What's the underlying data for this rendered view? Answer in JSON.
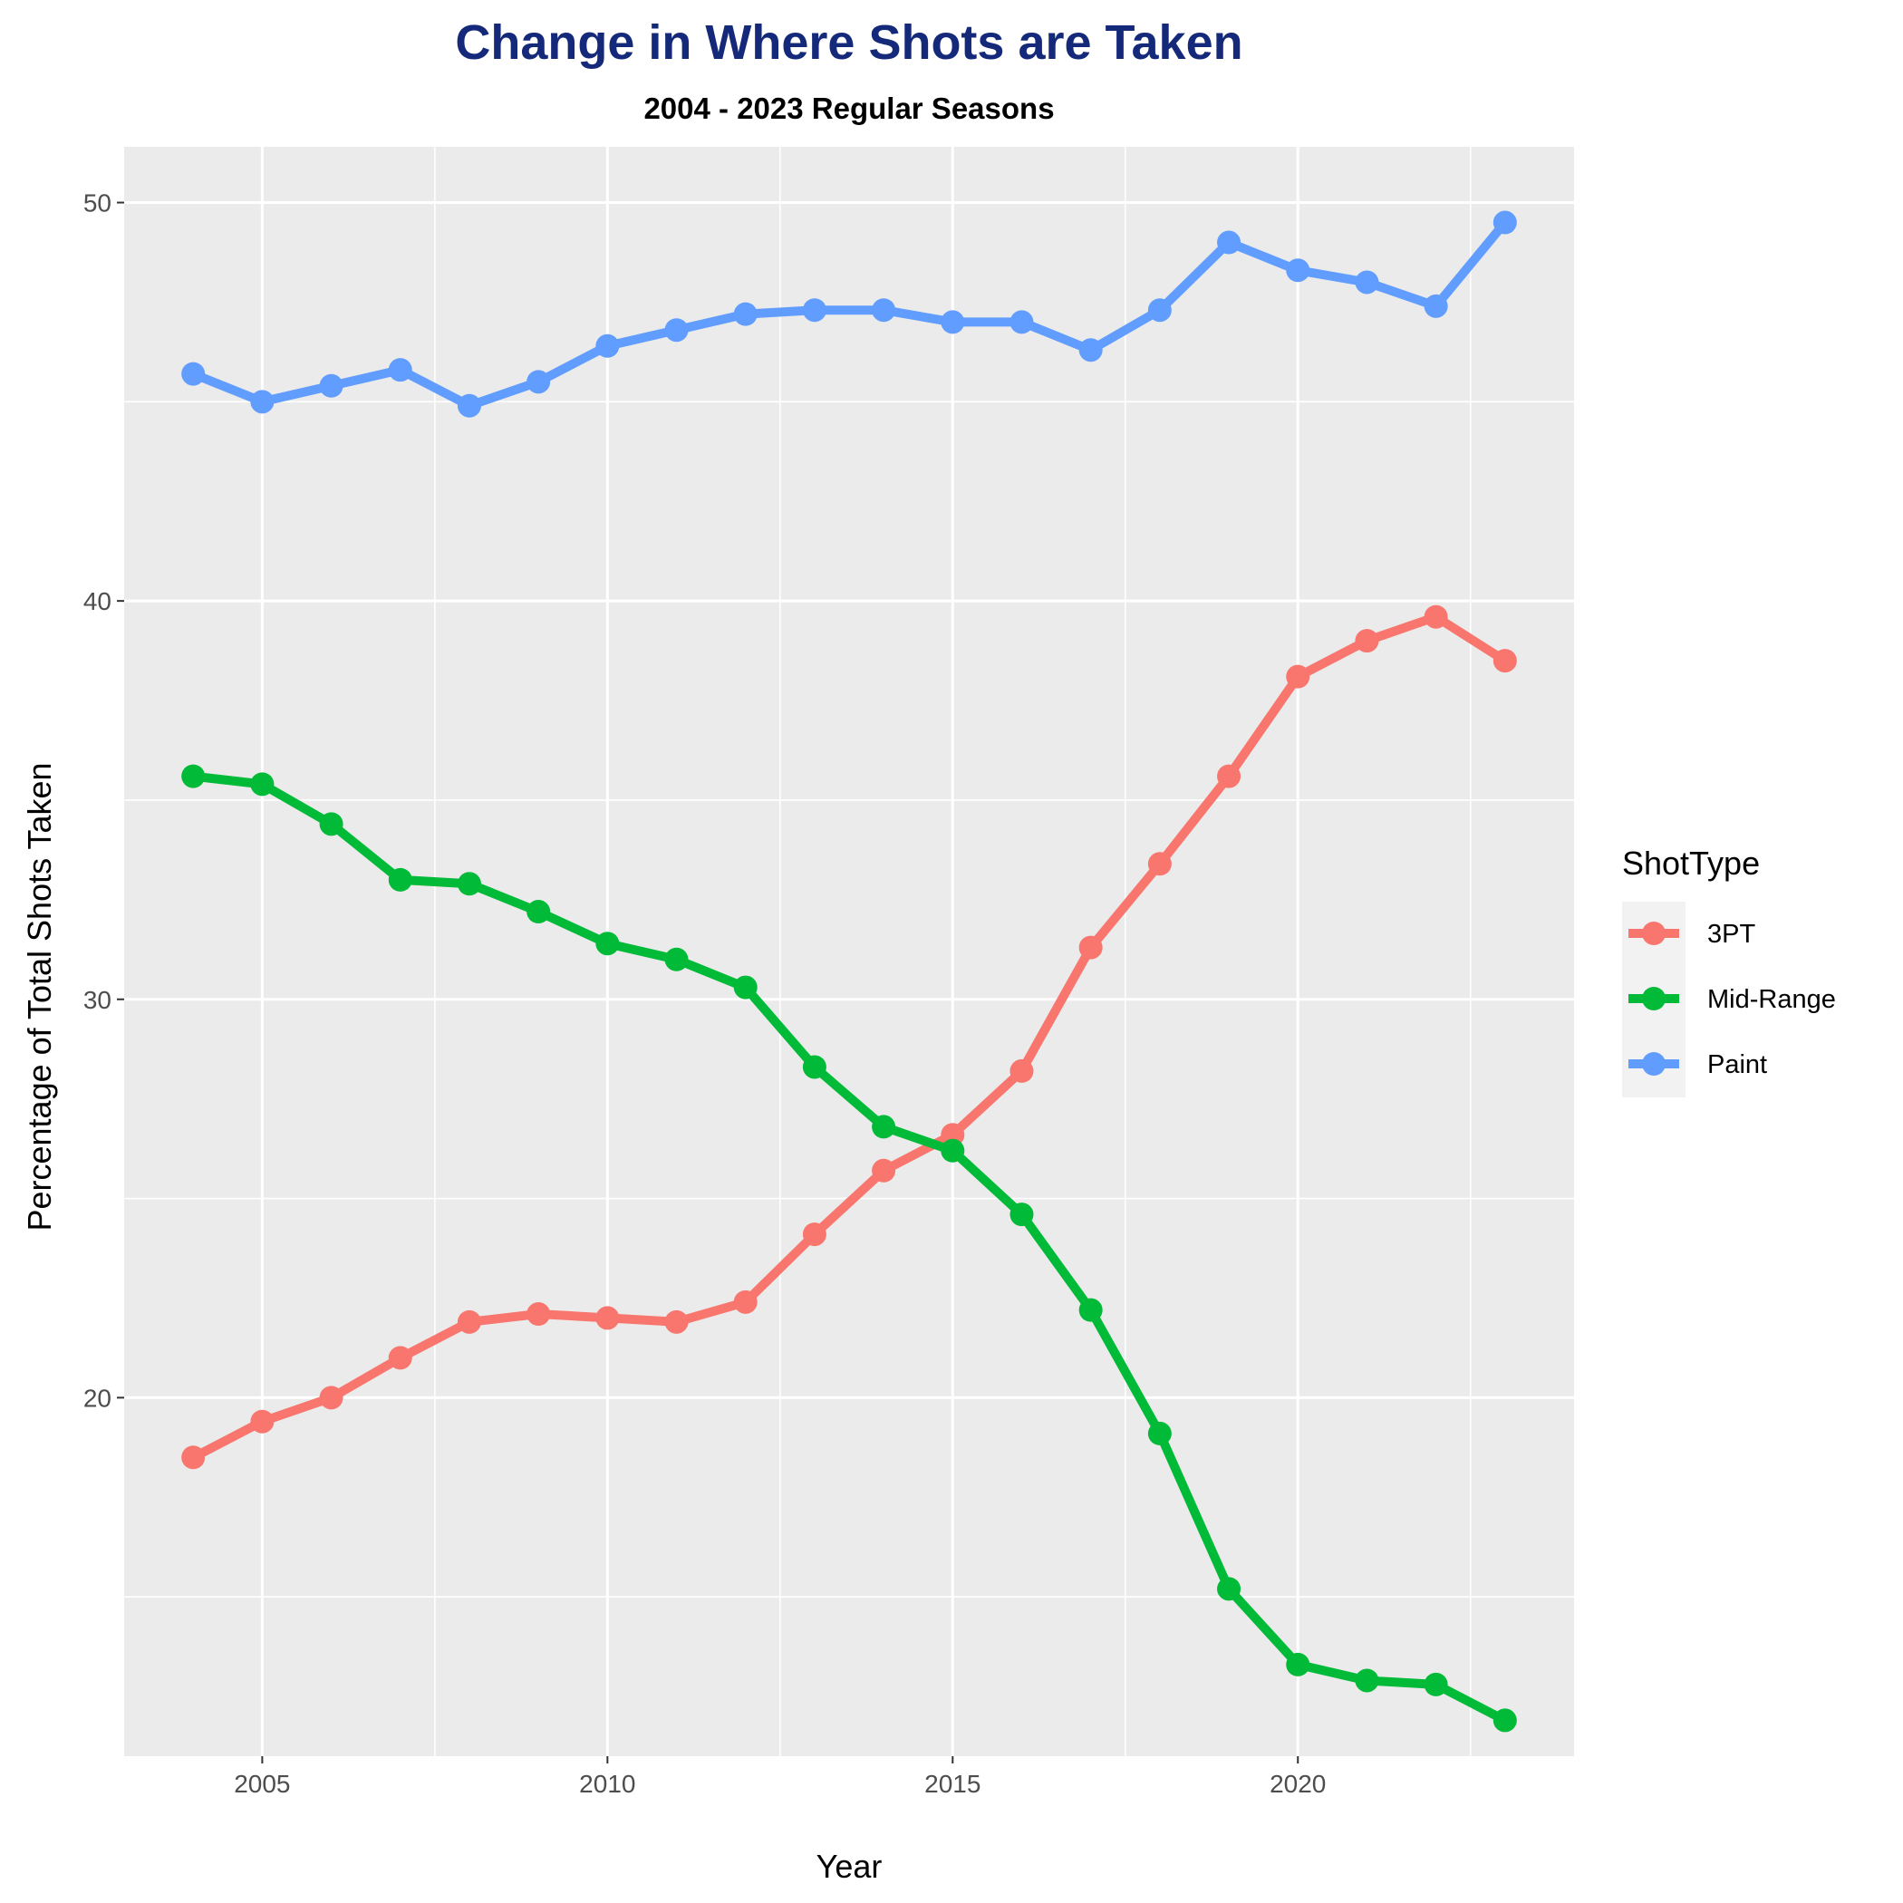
{
  "chart_data": {
    "type": "line",
    "title": "Change in Where Shots are Taken",
    "subtitle": "2004 - 2023 Regular Seasons",
    "xlabel": "Year",
    "ylabel": "Percentage of Total Shots Taken",
    "xlim": [
      2003,
      2024
    ],
    "ylim": [
      11,
      51.4
    ],
    "x_ticks": [
      2005,
      2010,
      2015,
      2020
    ],
    "y_ticks": [
      20,
      30,
      40,
      50
    ],
    "grid": true,
    "legend": {
      "title": "ShotType",
      "position": "right"
    },
    "x": [
      2004,
      2005,
      2006,
      2007,
      2008,
      2009,
      2010,
      2011,
      2012,
      2013,
      2014,
      2015,
      2016,
      2017,
      2018,
      2019,
      2020,
      2021,
      2022,
      2023
    ],
    "series": [
      {
        "name": "3PT",
        "color": "#f8766d",
        "values": [
          18.5,
          19.4,
          20.0,
          21.0,
          21.9,
          22.1,
          22.0,
          21.9,
          22.4,
          24.1,
          25.7,
          26.6,
          28.2,
          31.3,
          33.4,
          35.6,
          38.1,
          39.0,
          39.6,
          38.5
        ]
      },
      {
        "name": "Mid-Range",
        "color": "#00ba38",
        "values": [
          35.6,
          35.4,
          34.4,
          33.0,
          32.9,
          32.2,
          31.4,
          31.0,
          30.3,
          28.3,
          26.8,
          26.2,
          24.6,
          22.2,
          19.1,
          15.2,
          13.3,
          12.9,
          12.8,
          11.9
        ]
      },
      {
        "name": "Paint",
        "color": "#619cff",
        "values": [
          45.7,
          45.0,
          45.4,
          45.8,
          44.9,
          45.5,
          46.4,
          46.8,
          47.2,
          47.3,
          47.3,
          47.0,
          47.0,
          46.3,
          47.3,
          49.0,
          48.3,
          48.0,
          47.4,
          49.5
        ]
      }
    ]
  }
}
